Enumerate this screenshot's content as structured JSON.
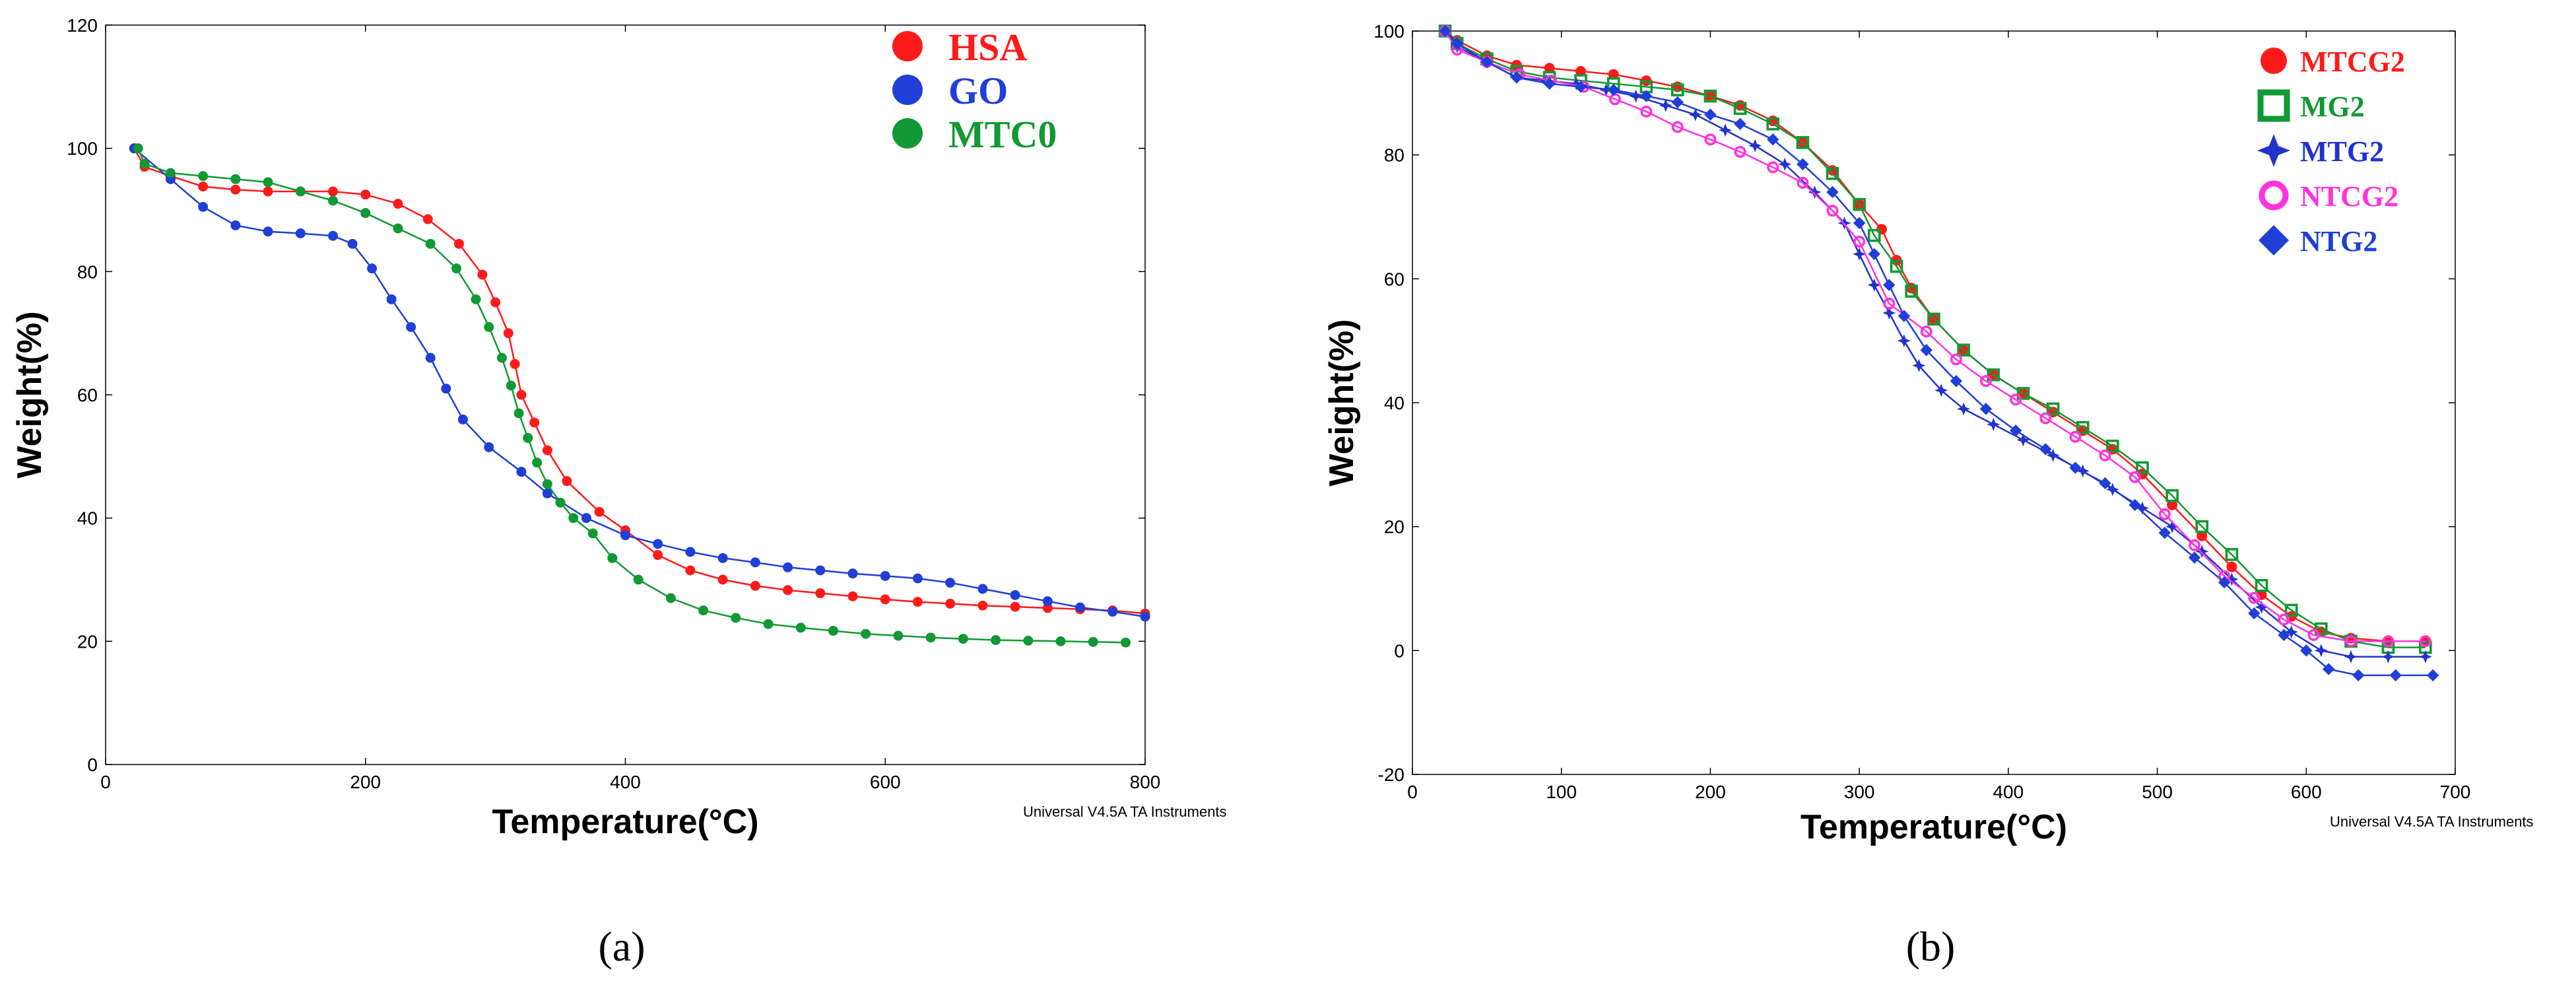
{
  "chart_data": [
    {
      "id": "a",
      "type": "line",
      "caption": "(a)",
      "xlabel": "Temperature(°C)",
      "ylabel": "Weight(%)",
      "xlim": [
        0,
        800
      ],
      "ylim": [
        0,
        120
      ],
      "xticks": [
        0,
        200,
        400,
        600,
        800
      ],
      "yticks": [
        0,
        20,
        40,
        60,
        80,
        100,
        120
      ],
      "footer": "Universal V4.5A TA Instruments",
      "series": [
        {
          "name": "HSA",
          "color": "#ff1a1a",
          "marker": "circle",
          "x": [
            22,
            30,
            50,
            75,
            100,
            125,
            150,
            175,
            200,
            225,
            248,
            272,
            290,
            300,
            310,
            315,
            320,
            330,
            340,
            355,
            380,
            400,
            425,
            450,
            475,
            500,
            525,
            550,
            575,
            600,
            625,
            650,
            675,
            700,
            725,
            750,
            775,
            800
          ],
          "y": [
            100,
            97,
            95.5,
            93.8,
            93.3,
            93,
            93,
            93,
            92.5,
            91,
            88.5,
            84.5,
            79.5,
            75,
            70,
            65,
            60,
            55.5,
            51,
            46,
            41,
            38,
            34,
            31.5,
            30,
            29,
            28.3,
            27.8,
            27.3,
            26.8,
            26.4,
            26.1,
            25.8,
            25.6,
            25.4,
            25.2,
            25,
            24.5
          ]
        },
        {
          "name": "GO",
          "color": "#1f3fd6",
          "marker": "circle",
          "x": [
            22,
            50,
            75,
            100,
            125,
            150,
            175,
            190,
            205,
            220,
            235,
            250,
            262,
            275,
            295,
            320,
            340,
            370,
            400,
            425,
            450,
            475,
            500,
            525,
            550,
            575,
            600,
            625,
            650,
            675,
            700,
            725,
            750,
            775,
            800
          ],
          "y": [
            100,
            95,
            90.5,
            87.5,
            86.5,
            86.2,
            85.8,
            84.5,
            80.5,
            75.5,
            71,
            66,
            61,
            56,
            51.5,
            47.5,
            44,
            40,
            37.2,
            35.8,
            34.5,
            33.5,
            32.8,
            32,
            31.5,
            31,
            30.6,
            30.2,
            29.5,
            28.5,
            27.5,
            26.5,
            25.5,
            24.8,
            24
          ]
        },
        {
          "name": "MTC0",
          "color": "#119933",
          "marker": "circle",
          "x": [
            25,
            30,
            50,
            75,
            100,
            125,
            150,
            175,
            200,
            225,
            250,
            270,
            285,
            295,
            305,
            312,
            318,
            325,
            332,
            340,
            350,
            360,
            375,
            390,
            410,
            435,
            460,
            485,
            510,
            535,
            560,
            585,
            610,
            635,
            660,
            685,
            710,
            735,
            760,
            785
          ],
          "y": [
            100,
            97.5,
            96,
            95.5,
            95,
            94.5,
            93,
            91.5,
            89.5,
            87,
            84.5,
            80.5,
            75.5,
            71,
            66,
            61.5,
            57,
            53,
            49,
            45.5,
            42.5,
            40,
            37.5,
            33.5,
            30,
            27,
            25,
            23.8,
            22.8,
            22.2,
            21.7,
            21.2,
            20.9,
            20.6,
            20.4,
            20.2,
            20.1,
            20,
            19.9,
            19.8
          ]
        }
      ]
    },
    {
      "id": "b",
      "type": "line",
      "caption": "(b)",
      "xlabel": "Temperature(°C)",
      "ylabel": "Weight(%)",
      "xlim": [
        0,
        700
      ],
      "ylim": [
        -20,
        100
      ],
      "xticks": [
        0,
        100,
        200,
        300,
        400,
        500,
        600,
        700
      ],
      "yticks": [
        -20,
        0,
        20,
        40,
        60,
        80,
        100
      ],
      "footer": "Universal V4.5A TA Instruments",
      "series": [
        {
          "name": "MTCG2",
          "color": "#ff1a1a",
          "marker": "circle",
          "x": [
            22,
            30,
            50,
            70,
            92,
            113,
            135,
            157,
            178,
            200,
            220,
            242,
            262,
            282,
            300,
            315,
            325,
            335,
            350,
            370,
            390,
            410,
            430,
            450,
            470,
            490,
            510,
            530,
            550,
            570,
            590,
            610,
            630,
            655,
            680
          ],
          "y": [
            100,
            98.5,
            96,
            94.5,
            94,
            93.5,
            93,
            92,
            91,
            89.5,
            88,
            85.5,
            82,
            77.5,
            72,
            68,
            63,
            58.5,
            53.5,
            48.5,
            44.5,
            41.5,
            38.5,
            35.5,
            32.5,
            28.5,
            23.5,
            18.5,
            13.5,
            9,
            5.5,
            3,
            2,
            1.5,
            1.5
          ]
        },
        {
          "name": "MG2",
          "color": "#119933",
          "marker": "square",
          "x": [
            22,
            30,
            50,
            70,
            92,
            113,
            135,
            157,
            178,
            200,
            220,
            242,
            262,
            282,
            300,
            310,
            325,
            335,
            350,
            370,
            390,
            410,
            430,
            450,
            470,
            490,
            510,
            530,
            550,
            570,
            590,
            610,
            630,
            655,
            680
          ],
          "y": [
            100,
            98,
            95.5,
            93.5,
            92.5,
            92,
            91.5,
            91,
            90.5,
            89.5,
            87.5,
            85,
            82,
            77,
            72,
            67,
            62,
            58,
            53.5,
            48.5,
            44.5,
            41.5,
            39,
            36,
            33,
            29.5,
            25,
            20,
            15.5,
            10.5,
            6.5,
            3.5,
            1.5,
            0.5,
            0.5
          ]
        },
        {
          "name": "MTG2",
          "color": "#2233cc",
          "marker": "plus",
          "x": [
            22,
            30,
            50,
            70,
            90,
            110,
            130,
            150,
            170,
            190,
            210,
            230,
            250,
            270,
            290,
            300,
            310,
            320,
            330,
            340,
            355,
            370,
            390,
            410,
            430,
            450,
            470,
            490,
            510,
            530,
            550,
            570,
            590,
            610,
            630,
            655,
            680
          ],
          "y": [
            100,
            97.5,
            95,
            92.5,
            92,
            91.5,
            90.5,
            89.5,
            88,
            86.5,
            84,
            81.5,
            78.5,
            74,
            69,
            64,
            59,
            54.5,
            50,
            46,
            42,
            39,
            36.5,
            34,
            31.5,
            29,
            26,
            23,
            20,
            16,
            11.5,
            7,
            3,
            0,
            -1,
            -1,
            -1
          ]
        },
        {
          "name": "NTCG2",
          "color": "#ff33dd",
          "marker": "ring",
          "x": [
            22,
            30,
            50,
            72,
            93,
            115,
            136,
            157,
            178,
            200,
            220,
            242,
            262,
            282,
            300,
            320,
            345,
            365,
            385,
            405,
            425,
            445,
            465,
            485,
            505,
            525,
            545,
            565,
            585,
            605,
            630,
            655,
            680
          ],
          "y": [
            100,
            97,
            95,
            93,
            92,
            91,
            89,
            87,
            84.5,
            82.5,
            80.5,
            78,
            75.5,
            71,
            66,
            56,
            51.5,
            47,
            43.5,
            40.5,
            37.5,
            34.5,
            31.5,
            28,
            22,
            17,
            12,
            8.5,
            5,
            2.5,
            1.5,
            1.5,
            1.5
          ]
        },
        {
          "name": "NTG2",
          "color": "#1f3fd6",
          "marker": "diamond",
          "x": [
            22,
            30,
            50,
            70,
            92,
            113,
            135,
            157,
            178,
            200,
            220,
            242,
            262,
            282,
            300,
            310,
            320,
            330,
            345,
            365,
            385,
            405,
            425,
            445,
            465,
            485,
            505,
            525,
            545,
            565,
            585,
            600,
            615,
            635,
            660,
            685
          ],
          "y": [
            100,
            98,
            95,
            92.5,
            91.5,
            91,
            90.5,
            89.5,
            88.5,
            86.5,
            85,
            82.5,
            78.5,
            74,
            69,
            64,
            59,
            54,
            48.5,
            43.5,
            39,
            35.5,
            32.5,
            29.5,
            27,
            23.5,
            19,
            15,
            11,
            6,
            2.5,
            0,
            -3,
            -4,
            -4,
            -4
          ]
        }
      ]
    }
  ]
}
